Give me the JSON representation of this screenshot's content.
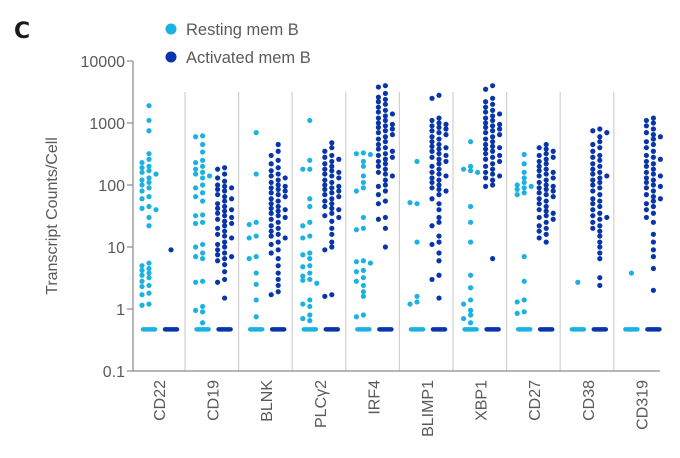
{
  "panel_label": "C",
  "chart_data": {
    "type": "scatter",
    "subtype": "strip-plot (log scale)",
    "title": "",
    "xlabel": "",
    "ylabel": "Transcript Counts/Cell",
    "yscale": "log",
    "ylim": [
      0.1,
      10000
    ],
    "yticks": [
      {
        "value": 10000,
        "label": "10000"
      },
      {
        "value": 1000,
        "label": "1000"
      },
      {
        "value": 100,
        "label": "100"
      },
      {
        "value": 10,
        "label": "10"
      },
      {
        "value": 1,
        "label": "1"
      },
      {
        "value": 0.1,
        "label": "0.1"
      }
    ],
    "zero_count_plot_value": 0.47,
    "grid": false,
    "legend": {
      "placement": "top-left",
      "entries": [
        {
          "label": "Resting mem B",
          "color": "#1ab2e2"
        },
        {
          "label": "Activated mem B",
          "color": "#0836aa"
        }
      ]
    },
    "categories": [
      "CD22",
      "CD19",
      "BLNK",
      "PLCγ2",
      "IRF4",
      "BLIMP1",
      "XBP1",
      "CD27",
      "CD38",
      "CD319"
    ],
    "series": [
      {
        "name": "Resting mem B",
        "color": "#1ab2e2",
        "points": [
          [
            1900,
            1100,
            750,
            320,
            260,
            230,
            200,
            190,
            170,
            160,
            150,
            130,
            120,
            110,
            100,
            90,
            80,
            65,
            60,
            45,
            42,
            40,
            30,
            22,
            5.5,
            5,
            4.5,
            4.2,
            3.8,
            3.5,
            3.2,
            2.8,
            2.4,
            2.3,
            1.8,
            1.7,
            1.2,
            1.15
          ],
          [
            620,
            600,
            450,
            340,
            250,
            230,
            200,
            180,
            160,
            150,
            140,
            130,
            100,
            90,
            75,
            65,
            55,
            33,
            32,
            25,
            24,
            11,
            10,
            8,
            7,
            6.5,
            2.8,
            2.7,
            1.1,
            0.95,
            0.9,
            0.6
          ],
          [
            700,
            150,
            25,
            23,
            15,
            14,
            7,
            6.5,
            3.8,
            2.5,
            1.4,
            0.75
          ],
          [
            1100,
            250,
            180,
            180,
            60,
            45,
            25,
            22,
            15,
            14,
            8,
            7.5,
            6.5,
            5,
            4.8,
            3.8,
            3.4,
            3,
            2.9,
            2.6,
            1.4,
            1.2,
            1.1,
            0.8,
            0.7,
            0.65
          ],
          [
            330,
            320,
            310,
            240,
            200,
            140,
            110,
            90,
            80,
            30,
            20,
            19,
            6,
            5.8,
            5.5,
            4.2,
            4,
            3.2,
            2.8,
            2.4,
            1.9,
            1.6,
            0.8,
            0.75
          ],
          [
            240,
            50,
            52,
            12,
            1.6,
            1.3,
            1.2
          ],
          [
            500,
            200,
            180,
            170,
            160,
            45,
            25,
            12,
            3.5,
            2.2,
            1.4,
            1.2,
            0.95,
            0.8,
            0.7,
            0.6
          ],
          [
            310,
            220,
            160,
            130,
            110,
            100,
            95,
            90,
            85,
            75,
            70,
            7,
            2.8,
            1.4,
            1.3,
            0.9,
            0.85
          ],
          [
            2.7
          ],
          [
            3.8
          ]
        ]
      },
      {
        "name": "Activated mem B",
        "color": "#0836aa",
        "points": [
          [
            9
          ],
          [
            190,
            180,
            150,
            130,
            115,
            100,
            95,
            90,
            85,
            80,
            70,
            65,
            60,
            55,
            50,
            45,
            42,
            40,
            38,
            35,
            32,
            30,
            28,
            26,
            24,
            22,
            20,
            18,
            16,
            15,
            14,
            12,
            11,
            10,
            9,
            8,
            7.5,
            7,
            6.5,
            6,
            5.2,
            4,
            3,
            2.7,
            1.5
          ],
          [
            450,
            350,
            300,
            250,
            220,
            190,
            170,
            150,
            140,
            130,
            120,
            110,
            100,
            95,
            90,
            85,
            80,
            75,
            70,
            65,
            60,
            55,
            50,
            45,
            42,
            40,
            38,
            35,
            32,
            30,
            28,
            25,
            22,
            20,
            18,
            16,
            15,
            14,
            12,
            11,
            9,
            8,
            6.5,
            5,
            3.8,
            3,
            2.4,
            1.9,
            1.7
          ],
          [
            480,
            400,
            350,
            300,
            280,
            260,
            240,
            220,
            200,
            180,
            170,
            160,
            150,
            140,
            130,
            120,
            110,
            100,
            95,
            90,
            85,
            80,
            75,
            70,
            65,
            60,
            55,
            50,
            45,
            42,
            40,
            35,
            32,
            30,
            26,
            20,
            16,
            12,
            10,
            9,
            1.7,
            1.6
          ],
          [
            4000,
            3800,
            3000,
            2600,
            2400,
            2200,
            2000,
            1800,
            1600,
            1500,
            1400,
            1300,
            1200,
            1100,
            1000,
            950,
            900,
            850,
            800,
            750,
            700,
            650,
            600,
            550,
            500,
            450,
            400,
            380,
            350,
            320,
            300,
            280,
            260,
            240,
            220,
            200,
            180,
            160,
            150,
            140,
            120,
            100,
            95,
            80,
            70,
            55,
            50,
            30,
            28,
            20,
            10
          ],
          [
            2800,
            2500,
            1200,
            1100,
            1000,
            950,
            900,
            850,
            800,
            750,
            700,
            650,
            600,
            550,
            500,
            450,
            420,
            400,
            380,
            350,
            320,
            300,
            280,
            260,
            240,
            220,
            200,
            180,
            160,
            150,
            140,
            130,
            120,
            110,
            100,
            90,
            85,
            80,
            70,
            60,
            50,
            40,
            30,
            25,
            22,
            15,
            12,
            11,
            8,
            6,
            3.5,
            3,
            1.5
          ],
          [
            4000,
            3500,
            2500,
            2200,
            2000,
            1800,
            1600,
            1500,
            1400,
            1300,
            1200,
            1100,
            1000,
            950,
            900,
            850,
            800,
            750,
            700,
            650,
            600,
            550,
            500,
            450,
            420,
            400,
            380,
            350,
            320,
            300,
            280,
            260,
            240,
            220,
            200,
            180,
            160,
            150,
            140,
            130,
            120,
            100,
            95,
            6.5
          ],
          [
            450,
            400,
            380,
            350,
            320,
            300,
            280,
            260,
            240,
            220,
            200,
            180,
            170,
            160,
            150,
            140,
            130,
            120,
            110,
            100,
            95,
            90,
            85,
            80,
            75,
            70,
            65,
            60,
            55,
            50,
            45,
            40,
            38,
            35,
            32,
            30,
            28,
            25,
            22,
            20,
            18,
            16,
            14,
            12
          ],
          [
            800,
            750,
            700,
            600,
            500,
            450,
            400,
            350,
            300,
            280,
            250,
            220,
            200,
            180,
            160,
            150,
            140,
            130,
            120,
            110,
            100,
            90,
            80,
            70,
            60,
            55,
            50,
            45,
            40,
            35,
            32,
            30,
            28,
            25,
            22,
            20,
            18,
            15,
            12,
            10,
            8,
            6.5,
            3.2,
            2.4
          ],
          [
            1200,
            1100,
            1000,
            900,
            800,
            700,
            650,
            600,
            550,
            500,
            450,
            400,
            350,
            300,
            280,
            260,
            240,
            220,
            200,
            180,
            160,
            150,
            140,
            130,
            120,
            110,
            100,
            95,
            90,
            80,
            70,
            65,
            60,
            55,
            50,
            45,
            40,
            35,
            30,
            25,
            16,
            12,
            9,
            7,
            4.5,
            2
          ]
        ]
      }
    ]
  }
}
